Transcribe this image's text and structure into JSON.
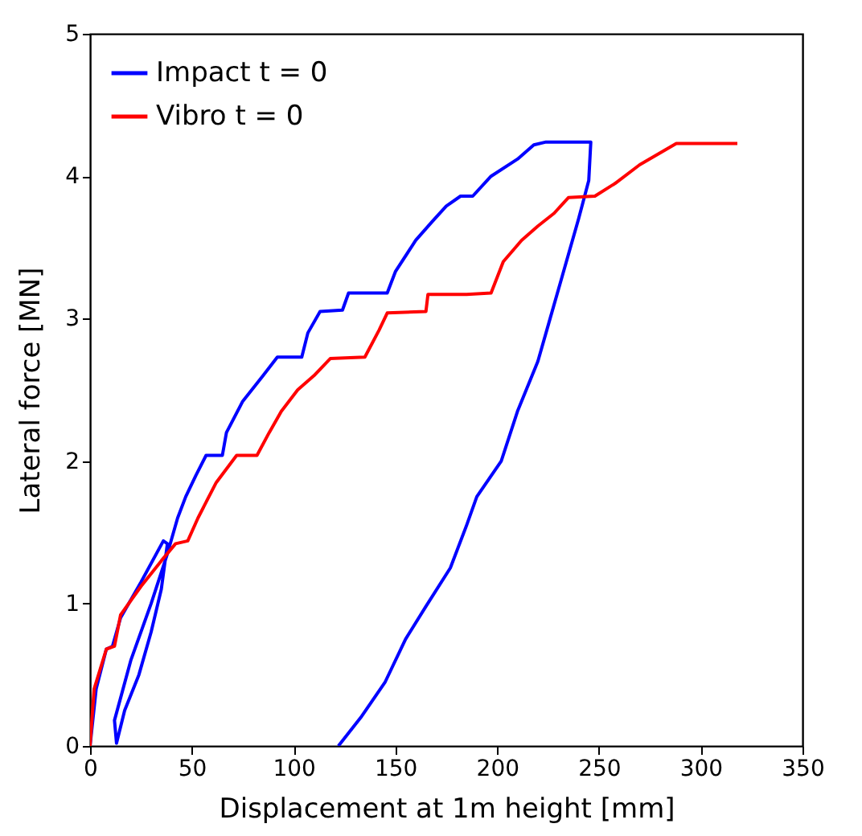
{
  "chart_data": {
    "type": "line",
    "xlabel": "Displacement at 1m height [mm]",
    "ylabel": "Lateral force [MN]",
    "xlim": [
      0,
      350
    ],
    "xticks": [
      0,
      50,
      100,
      150,
      200,
      250,
      300,
      350
    ],
    "ylim": [
      0,
      5
    ],
    "yticks": [
      0,
      1,
      2,
      3,
      4,
      5
    ],
    "grid": false,
    "legend": "top left",
    "marker": "none",
    "line_style": "solid",
    "series": [
      {
        "name": "Impact t = 0",
        "color": "#0000ff",
        "x": [
          0,
          3,
          8,
          11,
          15,
          25,
          36,
          38,
          35,
          30,
          24,
          17,
          13,
          12,
          20,
          30,
          38,
          43,
          47,
          52,
          57,
          65,
          67,
          75,
          85,
          92,
          104,
          107,
          113,
          124,
          127,
          146,
          150,
          160,
          168,
          175,
          182,
          188,
          197,
          210,
          218,
          224,
          246,
          245,
          240,
          232,
          226,
          220,
          210,
          202,
          190,
          185,
          177,
          165,
          155,
          145,
          133,
          122
        ],
        "values": [
          0,
          0.4,
          0.68,
          0.7,
          0.9,
          1.15,
          1.44,
          1.42,
          1.1,
          0.8,
          0.5,
          0.25,
          0.02,
          0.18,
          0.6,
          1.0,
          1.35,
          1.6,
          1.75,
          1.9,
          2.04,
          2.04,
          2.2,
          2.42,
          2.6,
          2.73,
          2.73,
          2.9,
          3.05,
          3.06,
          3.18,
          3.18,
          3.33,
          3.55,
          3.68,
          3.79,
          3.86,
          3.86,
          4.0,
          4.12,
          4.22,
          4.24,
          4.24,
          3.97,
          3.7,
          3.3,
          3.0,
          2.7,
          2.35,
          2.0,
          1.75,
          1.55,
          1.25,
          0.98,
          0.75,
          0.45,
          0.2,
          0
        ]
      },
      {
        "name": "Vibro t = 0",
        "color": "#ff0000",
        "x": [
          0,
          2,
          8,
          12,
          15,
          25,
          35,
          42,
          48,
          53,
          62,
          72,
          82,
          88,
          94,
          102,
          110,
          118,
          135,
          142,
          146,
          165,
          166,
          185,
          197,
          203,
          212,
          220,
          228,
          235,
          248,
          258,
          270,
          288,
          318
        ],
        "values": [
          0,
          0.4,
          0.68,
          0.7,
          0.92,
          1.12,
          1.3,
          1.42,
          1.44,
          1.6,
          1.85,
          2.04,
          2.04,
          2.2,
          2.35,
          2.5,
          2.6,
          2.72,
          2.73,
          2.92,
          3.04,
          3.05,
          3.17,
          3.17,
          3.18,
          3.4,
          3.55,
          3.65,
          3.74,
          3.85,
          3.86,
          3.95,
          4.08,
          4.23,
          4.23
        ]
      }
    ]
  }
}
